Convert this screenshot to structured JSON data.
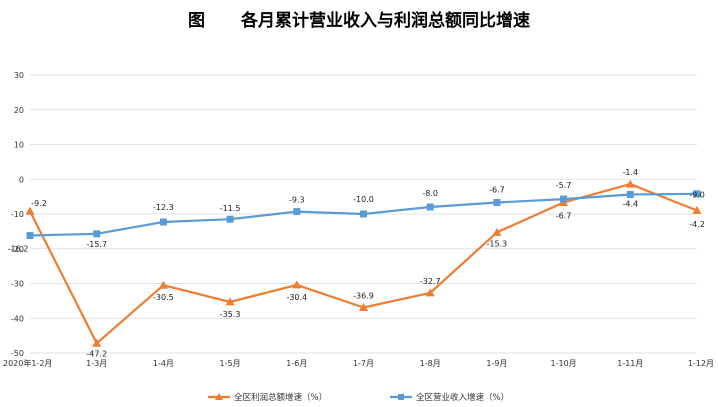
{
  "title": {
    "prefix": "图",
    "text": "各月累计营业收入与利润总额同比增速"
  },
  "chart_data": {
    "type": "line",
    "categories": [
      "2020年1-2月",
      "1-3月",
      "1-4月",
      "1-5月",
      "1-6月",
      "1-7月",
      "1-8月",
      "1-9月",
      "1-10月",
      "1-11月",
      "1-12月"
    ],
    "ylim": [
      -50,
      30
    ],
    "yticks": [
      30,
      20,
      10,
      0,
      -10,
      -20,
      -30,
      -40,
      -50
    ],
    "grid": true,
    "legend_position": "bottom",
    "series": [
      {
        "name": "全区利润总额增速（%）",
        "color": "#ED7D31",
        "marker": "triangle",
        "values": [
          -9.2,
          -47.2,
          -30.5,
          -35.3,
          -30.4,
          -36.9,
          -32.7,
          -15.3,
          -6.7,
          -1.4,
          -9.0
        ],
        "labels": [
          "-9.2",
          "-47.2",
          "-30.5",
          "-35.3",
          "-30.4",
          "-36.9",
          "-32.7",
          "-15.3",
          "-6.7",
          "-1.4",
          "-9.0"
        ]
      },
      {
        "name": "全区营业收入增速（%）",
        "color": "#5B9BD5",
        "marker": "square",
        "values": [
          -16.2,
          -15.7,
          -12.3,
          -11.5,
          -9.3,
          -10.0,
          -8.0,
          -6.7,
          -5.7,
          -4.4,
          -4.2
        ],
        "labels": [
          "-16.2",
          "-15.7",
          "-12.3",
          "-11.5",
          "-9.3",
          "-10.0",
          "-8.0",
          "-6.7",
          "-5.7",
          "-4.4",
          "-4.2"
        ]
      }
    ]
  }
}
